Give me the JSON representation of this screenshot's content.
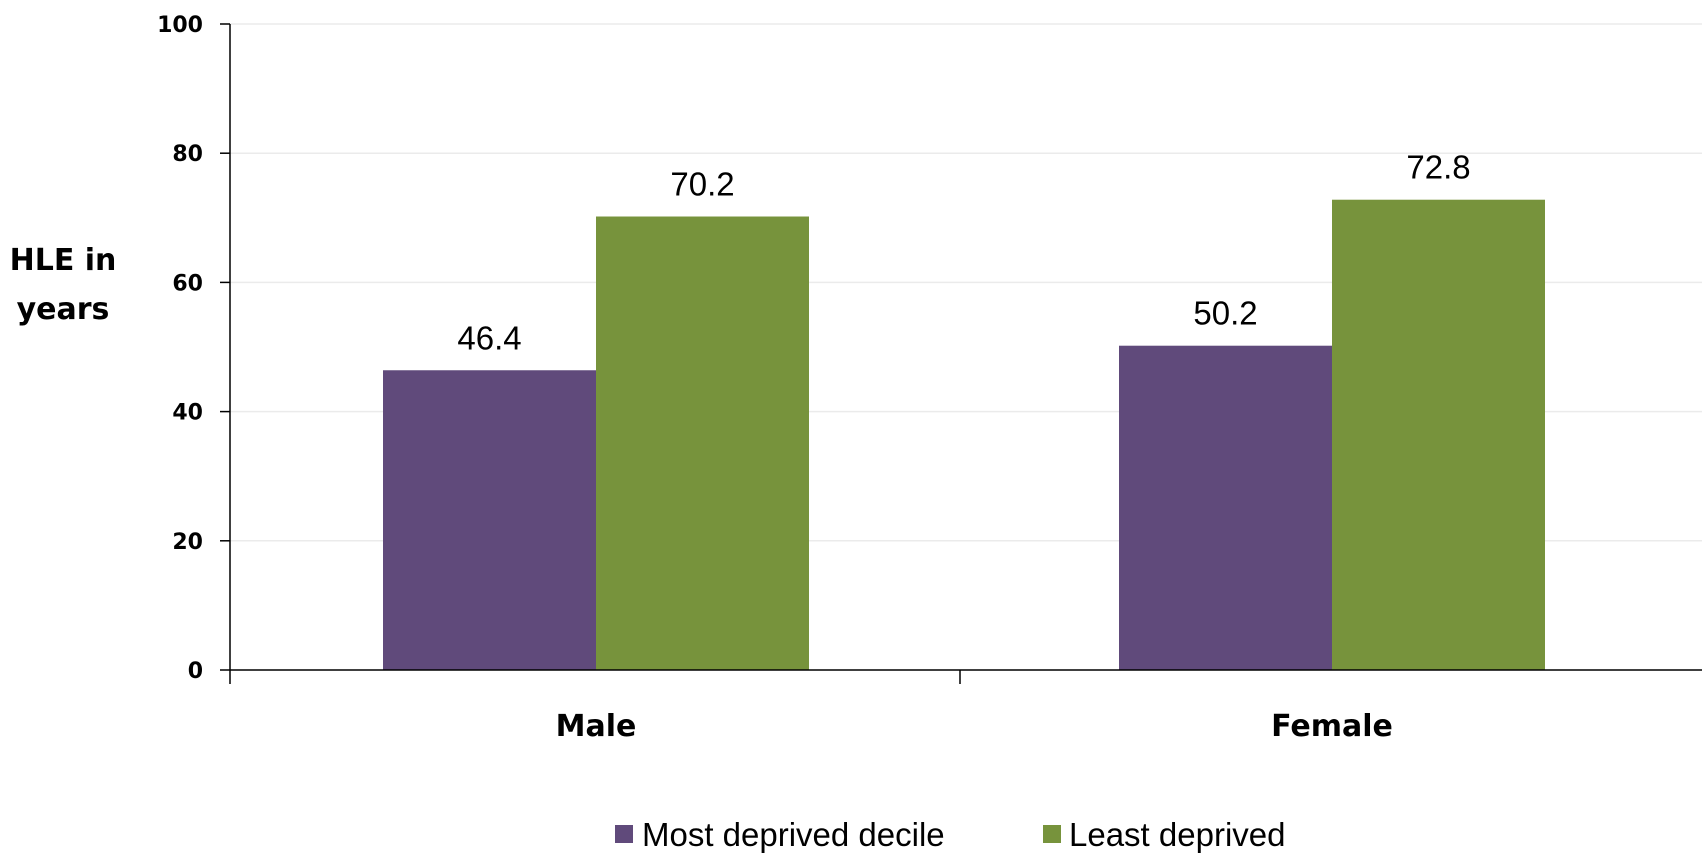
{
  "chart_data": {
    "type": "bar",
    "categories": [
      "Male",
      "Female"
    ],
    "series": [
      {
        "name": "Most deprived decile",
        "values": [
          46.4,
          50.2
        ],
        "color": "#604a7b"
      },
      {
        "name": "Least deprived",
        "values": [
          70.2,
          72.8
        ],
        "color": "#77933c"
      }
    ],
    "ylabel_lines": [
      "HLE in",
      "years"
    ],
    "xlabel": "",
    "ylim": [
      0,
      100
    ],
    "yticks": [
      0,
      20,
      40,
      60,
      80,
      100
    ],
    "ytick_labels": [
      "0",
      "20",
      "40",
      "60",
      "80",
      "100"
    ],
    "grid": true,
    "gridline_color": "#ebebeb",
    "axis_color": "#000000",
    "data_labels": true,
    "legend_position": "bottom"
  }
}
